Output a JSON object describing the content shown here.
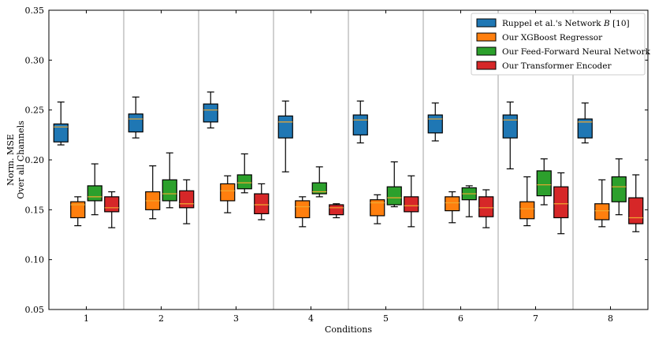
{
  "chart_data": {
    "type": "boxplot",
    "title": "",
    "xlabel": "Conditions",
    "ylabel_lines": [
      "Norm. MSE",
      "Over all Channels"
    ],
    "ylim": [
      0.05,
      0.35
    ],
    "yticks": [
      "0.05",
      "0.10",
      "0.15",
      "0.20",
      "0.25",
      "0.30",
      "0.35"
    ],
    "categories": [
      "1",
      "2",
      "3",
      "4",
      "5",
      "6",
      "7",
      "8"
    ],
    "series": [
      {
        "name": "Ruppel et al.'s Network",
        "name_italic": "B",
        "name_suffix": "[10]",
        "color": "#1f77b4",
        "boxes": [
          {
            "whislo": 0.215,
            "q1": 0.218,
            "med": 0.233,
            "q3": 0.236,
            "whishi": 0.258
          },
          {
            "whislo": 0.222,
            "q1": 0.228,
            "med": 0.241,
            "q3": 0.246,
            "whishi": 0.263
          },
          {
            "whislo": 0.232,
            "q1": 0.238,
            "med": 0.25,
            "q3": 0.256,
            "whishi": 0.268
          },
          {
            "whislo": 0.188,
            "q1": 0.222,
            "med": 0.238,
            "q3": 0.244,
            "whishi": 0.259
          },
          {
            "whislo": 0.217,
            "q1": 0.225,
            "med": 0.24,
            "q3": 0.245,
            "whishi": 0.259
          },
          {
            "whislo": 0.219,
            "q1": 0.227,
            "med": 0.241,
            "q3": 0.245,
            "whishi": 0.257
          },
          {
            "whislo": 0.191,
            "q1": 0.222,
            "med": 0.24,
            "q3": 0.245,
            "whishi": 0.258
          },
          {
            "whislo": 0.217,
            "q1": 0.222,
            "med": 0.238,
            "q3": 0.241,
            "whishi": 0.257
          }
        ]
      },
      {
        "name": "Our XGBoost Regressor",
        "color": "#ff7f0e",
        "boxes": [
          {
            "whislo": 0.134,
            "q1": 0.142,
            "med": 0.155,
            "q3": 0.158,
            "whishi": 0.163
          },
          {
            "whislo": 0.141,
            "q1": 0.15,
            "med": 0.159,
            "q3": 0.168,
            "whishi": 0.194
          },
          {
            "whislo": 0.147,
            "q1": 0.159,
            "med": 0.169,
            "q3": 0.176,
            "whishi": 0.184
          },
          {
            "whislo": 0.133,
            "q1": 0.142,
            "med": 0.153,
            "q3": 0.159,
            "whishi": 0.163
          },
          {
            "whislo": 0.136,
            "q1": 0.144,
            "med": 0.157,
            "q3": 0.16,
            "whishi": 0.165
          },
          {
            "whislo": 0.137,
            "q1": 0.149,
            "med": 0.157,
            "q3": 0.163,
            "whishi": 0.168
          },
          {
            "whislo": 0.134,
            "q1": 0.141,
            "med": 0.151,
            "q3": 0.158,
            "whishi": 0.183
          },
          {
            "whislo": 0.133,
            "q1": 0.14,
            "med": 0.149,
            "q3": 0.156,
            "whishi": 0.18
          }
        ]
      },
      {
        "name": "Our Feed-Forward Neural Network",
        "color": "#2ca02c",
        "boxes": [
          {
            "whislo": 0.145,
            "q1": 0.159,
            "med": 0.163,
            "q3": 0.174,
            "whishi": 0.196
          },
          {
            "whislo": 0.152,
            "q1": 0.159,
            "med": 0.166,
            "q3": 0.18,
            "whishi": 0.207
          },
          {
            "whislo": 0.167,
            "q1": 0.171,
            "med": 0.177,
            "q3": 0.185,
            "whishi": 0.206
          },
          {
            "whislo": 0.163,
            "q1": 0.166,
            "med": 0.168,
            "q3": 0.177,
            "whishi": 0.193
          },
          {
            "whislo": 0.153,
            "q1": 0.155,
            "med": 0.162,
            "q3": 0.173,
            "whishi": 0.198
          },
          {
            "whislo": 0.143,
            "q1": 0.16,
            "med": 0.166,
            "q3": 0.172,
            "whishi": 0.174
          },
          {
            "whislo": 0.155,
            "q1": 0.164,
            "med": 0.175,
            "q3": 0.189,
            "whishi": 0.201
          },
          {
            "whislo": 0.145,
            "q1": 0.158,
            "med": 0.173,
            "q3": 0.183,
            "whishi": 0.201
          }
        ]
      },
      {
        "name": "Our Transformer Encoder",
        "color": "#d62728",
        "boxes": [
          {
            "whislo": 0.132,
            "q1": 0.148,
            "med": 0.152,
            "q3": 0.163,
            "whishi": 0.168
          },
          {
            "whislo": 0.136,
            "q1": 0.152,
            "med": 0.156,
            "q3": 0.169,
            "whishi": 0.18
          },
          {
            "whislo": 0.14,
            "q1": 0.146,
            "med": 0.155,
            "q3": 0.166,
            "whishi": 0.176
          },
          {
            "whislo": 0.142,
            "q1": 0.145,
            "med": 0.152,
            "q3": 0.155,
            "whishi": 0.156
          },
          {
            "whislo": 0.133,
            "q1": 0.148,
            "med": 0.154,
            "q3": 0.163,
            "whishi": 0.184
          },
          {
            "whislo": 0.132,
            "q1": 0.143,
            "med": 0.152,
            "q3": 0.163,
            "whishi": 0.17
          },
          {
            "whislo": 0.126,
            "q1": 0.142,
            "med": 0.156,
            "q3": 0.173,
            "whishi": 0.187
          },
          {
            "whislo": 0.128,
            "q1": 0.136,
            "med": 0.142,
            "q3": 0.162,
            "whishi": 0.185
          }
        ]
      }
    ],
    "median_color": "#f0a830",
    "grid": false,
    "group_separators": true,
    "legend_position": "top-right"
  }
}
